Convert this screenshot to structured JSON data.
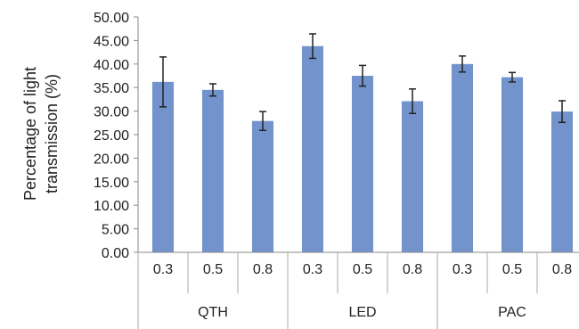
{
  "chart_data": {
    "type": "bar",
    "title": "",
    "ylabel_lines": [
      "Percentage of light",
      "transmission (%)"
    ],
    "ylim": [
      0,
      50
    ],
    "ytick_step": 5,
    "ytick_labels": [
      "0.00",
      "5.00",
      "10.00",
      "15.00",
      "20.00",
      "25.00",
      "30.00",
      "35.00",
      "40.00",
      "45.00",
      "50.00"
    ],
    "groups": [
      {
        "name": "QTH",
        "categories": [
          "0.3",
          "0.5",
          "0.8"
        ],
        "values": [
          36.2,
          34.5,
          27.9
        ],
        "errors": [
          5.3,
          1.3,
          2.0
        ]
      },
      {
        "name": "LED",
        "categories": [
          "0.3",
          "0.5",
          "0.8"
        ],
        "values": [
          43.8,
          37.5,
          32.1
        ],
        "errors": [
          2.6,
          2.2,
          2.6
        ]
      },
      {
        "name": "PAC",
        "categories": [
          "0.3",
          "0.5",
          "0.8"
        ],
        "values": [
          40.0,
          37.2,
          29.9
        ],
        "errors": [
          1.7,
          1.0,
          2.3
        ]
      }
    ],
    "bar_color": "#7293cb",
    "grid": false,
    "legend": "none"
  }
}
